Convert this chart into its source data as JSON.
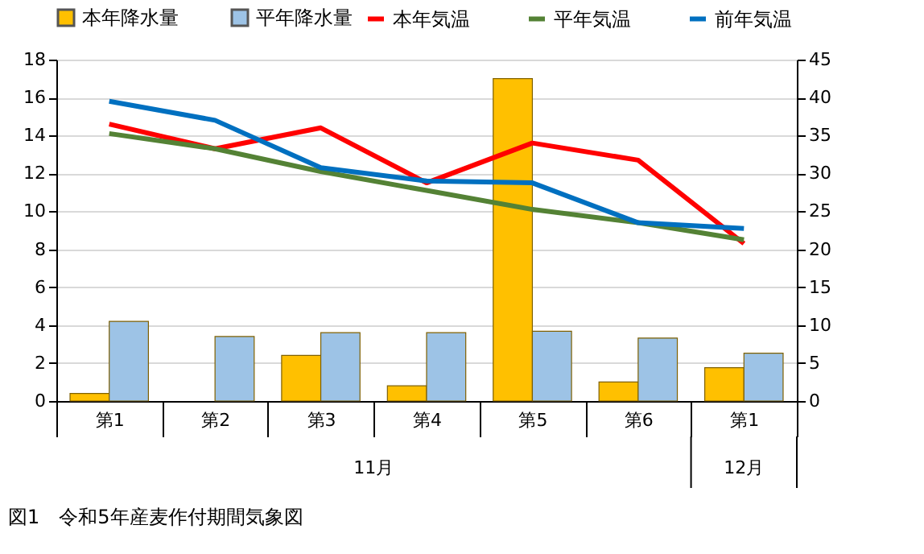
{
  "chart_data": {
    "type": "bar",
    "categories": [
      "第1",
      "第2",
      "第3",
      "第4",
      "第5",
      "第6",
      "第1"
    ],
    "series": [
      {
        "name": "本年降水量",
        "axis": "y2",
        "color": "#ffc000",
        "values": [
          1.0,
          null,
          6.0,
          2.0,
          42.5,
          2.5,
          4.4
        ]
      },
      {
        "name": "平年降水量",
        "axis": "y2",
        "color": "#9dc3e6",
        "values": [
          10.5,
          8.5,
          9.0,
          9.0,
          9.2,
          8.3,
          6.3
        ]
      },
      {
        "name": "本年気温",
        "type": "line",
        "color": "#ff0000",
        "values": [
          14.6,
          13.3,
          14.4,
          11.5,
          13.6,
          12.7,
          8.3
        ]
      },
      {
        "name": "平年気温",
        "type": "line",
        "color": "#548235",
        "values": [
          14.1,
          13.3,
          12.1,
          11.1,
          10.1,
          9.4,
          8.5
        ]
      },
      {
        "name": "前年気温",
        "type": "line",
        "color": "#0070c0",
        "values": [
          15.8,
          14.8,
          12.3,
          11.6,
          11.5,
          9.4,
          9.1
        ]
      }
    ],
    "ylim": [
      0,
      18
    ],
    "yticks": [
      0,
      2,
      4,
      6,
      8,
      10,
      12,
      14,
      16,
      18
    ],
    "y2lim": [
      0,
      45
    ],
    "y2ticks": [
      0,
      5,
      10,
      15,
      20,
      25,
      30,
      35,
      40,
      45
    ],
    "grid": "y",
    "legend": "top",
    "line_style": "solid",
    "annotations": [
      "11月",
      "12月",
      "図1　令和5年産麦作付期間気象図"
    ]
  }
}
